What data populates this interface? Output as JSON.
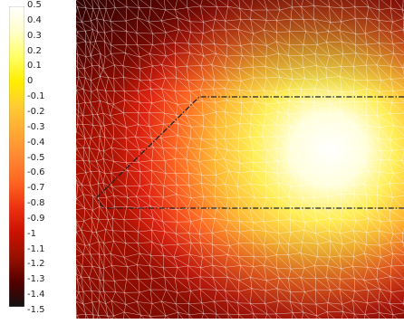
{
  "colorbar": {
    "ticks": [
      "0.5",
      "0.4",
      "0.3",
      "0.2",
      "0.1",
      "0",
      "-0.1",
      "-0.2",
      "-0.3",
      "-0.4",
      "-0.5",
      "-0.6",
      "-0.7",
      "-0.8",
      "-0.9",
      "-1",
      "-1.1",
      "-1.2",
      "-1.3",
      "-1.4",
      "-1.5"
    ],
    "colors_top_to_bottom": [
      "#ffffff",
      "#ffffcc",
      "#ffff66",
      "#ffee00",
      "#ffcc33",
      "#ffaa33",
      "#ff8833",
      "#ff6622",
      "#ee3311",
      "#cc1100",
      "#991100",
      "#550000",
      "#111111"
    ]
  },
  "field": {
    "mesh": "triangular",
    "mesh_color": "#ffffff",
    "outline_style": "dash-dot",
    "outline_color": "#222222",
    "hot_color": "#ffffff",
    "mid_color": "#ffcc33",
    "cold_color": "#cc1100",
    "corner_color": "#2a0000"
  }
}
